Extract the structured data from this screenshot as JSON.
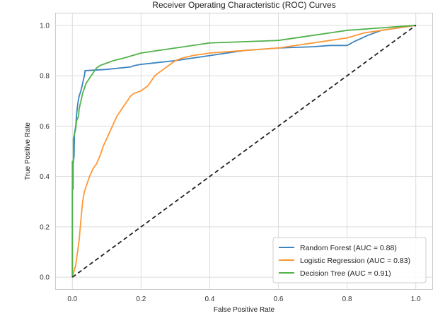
{
  "chart_data": {
    "type": "line",
    "title": "Receiver Operating Characteristic (ROC) Curves",
    "xlabel": "False Positive Rate",
    "ylabel": "True Positive Rate",
    "xlim": [
      -0.05,
      1.05
    ],
    "ylim": [
      -0.05,
      1.05
    ],
    "xticks": [
      0.0,
      0.2,
      0.4,
      0.6,
      0.8,
      1.0
    ],
    "yticks": [
      0.0,
      0.2,
      0.4,
      0.6,
      0.8,
      1.0
    ],
    "xtick_labels": [
      "0.0",
      "0.2",
      "0.4",
      "0.6",
      "0.8",
      "1.0"
    ],
    "ytick_labels": [
      "0.0",
      "0.2",
      "0.4",
      "0.6",
      "0.8",
      "1.0"
    ],
    "grid": true,
    "legend_position": "lower-right",
    "series": [
      {
        "name": "Random Forest (AUC = 0.88)",
        "color": "#3b84c0",
        "x": [
          0.0,
          0.0,
          0.002,
          0.002,
          0.005,
          0.006,
          0.01,
          0.012,
          0.015,
          0.017,
          0.02,
          0.025,
          0.03,
          0.035,
          0.037,
          0.1,
          0.17,
          0.18,
          0.2,
          0.3,
          0.4,
          0.5,
          0.6,
          0.7,
          0.75,
          0.8,
          0.82,
          0.86,
          0.9,
          0.95,
          1.0
        ],
        "y": [
          0.0,
          0.35,
          0.35,
          0.45,
          0.48,
          0.57,
          0.6,
          0.64,
          0.68,
          0.7,
          0.72,
          0.74,
          0.77,
          0.8,
          0.82,
          0.825,
          0.835,
          0.84,
          0.845,
          0.86,
          0.88,
          0.9,
          0.91,
          0.915,
          0.92,
          0.92,
          0.935,
          0.96,
          0.98,
          0.99,
          1.0
        ]
      },
      {
        "name": "Logistic Regression (AUC = 0.83)",
        "color": "#ff9734",
        "x": [
          0.0,
          0.01,
          0.015,
          0.02,
          0.025,
          0.03,
          0.035,
          0.04,
          0.05,
          0.06,
          0.07,
          0.08,
          0.09,
          0.1,
          0.11,
          0.12,
          0.13,
          0.14,
          0.15,
          0.16,
          0.17,
          0.18,
          0.2,
          0.22,
          0.24,
          0.26,
          0.28,
          0.3,
          0.32,
          0.35,
          0.4,
          0.5,
          0.6,
          0.7,
          0.75,
          0.8,
          0.85,
          0.9,
          0.95,
          1.0
        ],
        "y": [
          0.0,
          0.05,
          0.1,
          0.15,
          0.23,
          0.3,
          0.34,
          0.36,
          0.4,
          0.43,
          0.45,
          0.48,
          0.52,
          0.55,
          0.58,
          0.61,
          0.64,
          0.66,
          0.68,
          0.7,
          0.72,
          0.73,
          0.74,
          0.76,
          0.8,
          0.82,
          0.84,
          0.86,
          0.87,
          0.88,
          0.89,
          0.9,
          0.91,
          0.93,
          0.94,
          0.95,
          0.97,
          0.98,
          0.99,
          1.0
        ]
      },
      {
        "name": "Decision Tree (AUC = 0.91)",
        "color": "#50b24a",
        "x": [
          0.0,
          0.0,
          0.003,
          0.003,
          0.01,
          0.012,
          0.018,
          0.02,
          0.025,
          0.03,
          0.035,
          0.04,
          0.05,
          0.06,
          0.07,
          0.08,
          0.1,
          0.12,
          0.15,
          0.2,
          0.3,
          0.4,
          0.5,
          0.6,
          0.7,
          0.75,
          0.8,
          0.9,
          1.0
        ],
        "y": [
          0.0,
          0.46,
          0.46,
          0.55,
          0.59,
          0.62,
          0.64,
          0.67,
          0.7,
          0.73,
          0.75,
          0.77,
          0.79,
          0.81,
          0.83,
          0.84,
          0.85,
          0.86,
          0.87,
          0.89,
          0.91,
          0.93,
          0.935,
          0.94,
          0.96,
          0.97,
          0.98,
          0.99,
          1.0
        ]
      },
      {
        "name": "",
        "color": "#222222",
        "dashed": true,
        "x": [
          0.0,
          1.0
        ],
        "y": [
          0.0,
          1.0
        ]
      }
    ]
  }
}
